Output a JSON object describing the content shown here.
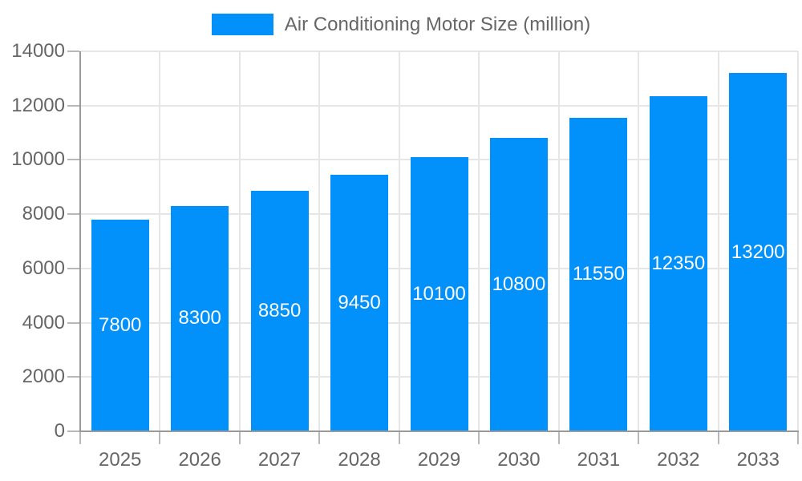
{
  "chart_data": {
    "type": "bar",
    "title": "Air Conditioning Motor Size (million)",
    "series_name": "Air Conditioning Motor Size (million)",
    "categories": [
      "2025",
      "2026",
      "2027",
      "2028",
      "2029",
      "2030",
      "2031",
      "2032",
      "2033"
    ],
    "values": [
      7800,
      8300,
      8850,
      9450,
      10100,
      10800,
      11550,
      12350,
      13200
    ],
    "ylim": [
      0,
      14000
    ],
    "ytick_step": 2000,
    "yticks": [
      0,
      2000,
      4000,
      6000,
      8000,
      10000,
      12000,
      14000
    ],
    "grid": true,
    "legend_position": "top-center",
    "value_label_position": "inside-center",
    "colors": {
      "bar": "#0290FA",
      "value_label": "#FFFFFF",
      "axis_text": "#666666",
      "legend_text": "#666666",
      "gridline": "#E6E6E6",
      "axis_line": "#9A9A9A",
      "tick": "#B8B8B8"
    }
  }
}
